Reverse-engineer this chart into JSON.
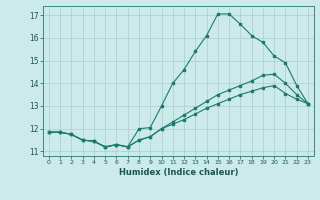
{
  "title": "",
  "xlabel": "Humidex (Indice chaleur)",
  "bg_color": "#cceaea",
  "grid_color": "#aacccc",
  "line_color": "#1a7a6e",
  "xlim": [
    -0.5,
    23.5
  ],
  "ylim": [
    10.8,
    17.4
  ],
  "xticks": [
    0,
    1,
    2,
    3,
    4,
    5,
    6,
    7,
    8,
    9,
    10,
    11,
    12,
    13,
    14,
    15,
    16,
    17,
    18,
    19,
    20,
    21,
    22,
    23
  ],
  "yticks": [
    11,
    12,
    13,
    14,
    15,
    16,
    17
  ],
  "line1_x": [
    0,
    1,
    2,
    3,
    4,
    5,
    6,
    7,
    8,
    9,
    10,
    11,
    12,
    13,
    14,
    15,
    16,
    17,
    18,
    19,
    20,
    21,
    22,
    23
  ],
  "line1_y": [
    11.85,
    11.85,
    11.75,
    11.5,
    11.45,
    11.2,
    11.3,
    11.2,
    12.0,
    12.05,
    13.0,
    14.0,
    14.6,
    15.4,
    16.1,
    17.05,
    17.05,
    16.6,
    16.1,
    15.8,
    15.2,
    14.9,
    13.9,
    13.1
  ],
  "line2_x": [
    0,
    1,
    2,
    3,
    4,
    5,
    6,
    7,
    8,
    9,
    10,
    11,
    12,
    13,
    14,
    15,
    16,
    17,
    18,
    19,
    20,
    21,
    22,
    23
  ],
  "line2_y": [
    11.85,
    11.85,
    11.75,
    11.5,
    11.45,
    11.2,
    11.3,
    11.2,
    11.5,
    11.65,
    12.0,
    12.3,
    12.6,
    12.9,
    13.2,
    13.5,
    13.7,
    13.9,
    14.1,
    14.35,
    14.4,
    14.0,
    13.5,
    13.1
  ],
  "line3_x": [
    0,
    1,
    2,
    3,
    4,
    5,
    6,
    7,
    8,
    9,
    10,
    11,
    12,
    13,
    14,
    15,
    16,
    17,
    18,
    19,
    20,
    21,
    22,
    23
  ],
  "line3_y": [
    11.85,
    11.85,
    11.75,
    11.5,
    11.45,
    11.2,
    11.3,
    11.2,
    11.5,
    11.65,
    12.0,
    12.2,
    12.4,
    12.65,
    12.9,
    13.1,
    13.3,
    13.5,
    13.65,
    13.8,
    13.9,
    13.55,
    13.3,
    13.1
  ]
}
